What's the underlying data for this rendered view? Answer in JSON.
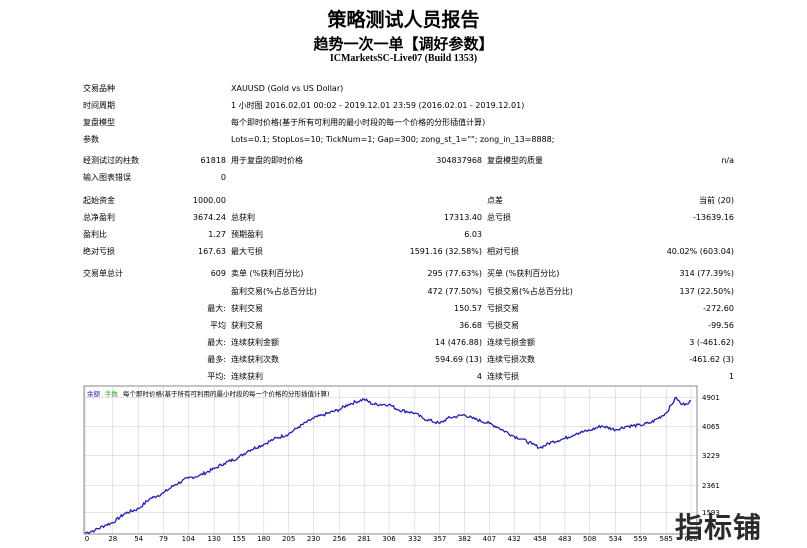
{
  "header": {
    "title": "策略测试人员报告",
    "subtitle": "趋势一次一单【调好参数】",
    "server": "ICMarketsSC-Live07 (Build 1353)"
  },
  "info": {
    "symbol_label": "交易品种",
    "symbol_value": "XAUUSD (Gold vs US Dollar)",
    "period_label": "时间周期",
    "period_value": "1 小时图 2016.02.01 00:02 - 2019.12.01 23:59 (2016.02.01 - 2019.12.01)",
    "model_label": "复盘模型",
    "model_value": "每个即时价格(基于所有可利用的最小时段的每一个价格的分形插值计算)",
    "params_label": "参数",
    "params_value": "Lots=0.1; StopLos=10; TickNum=1; Gap=300; zong_st_1=\"\"; zong_in_13=8888;"
  },
  "bars": {
    "bars_label": "经测试过的柱数",
    "bars_value": "61818",
    "ticks_label": "用于复盘的即时价格",
    "ticks_value": "304837968",
    "quality_label": "复盘模型的质量",
    "quality_value": "n/a",
    "errors_label": "输入图表错误",
    "errors_value": "0"
  },
  "stats": {
    "deposit_label": "起始资金",
    "deposit_value": "1000.00",
    "spread_label": "点差",
    "spread_value": "当前 (20)",
    "net_label": "总净盈利",
    "net_value": "3674.24",
    "gross_profit_label": "总获利",
    "gross_profit_value": "17313.40",
    "gross_loss_label": "总亏损",
    "gross_loss_value": "-13639.16",
    "pf_label": "盈利比",
    "pf_value": "1.27",
    "expected_label": "预期盈利",
    "expected_value": "6.03",
    "abs_dd_label": "绝对亏损",
    "abs_dd_value": "167.63",
    "max_dd_label": "最大亏损",
    "max_dd_value": "1591.16 (32.58%)",
    "rel_dd_label": "相对亏损",
    "rel_dd_value": "40.02% (603.04)"
  },
  "trades": {
    "total_label": "交易单总计",
    "total_value": "609",
    "short_label": "卖单 (%获利百分比)",
    "short_value": "295 (77.63%)",
    "long_label": "买单 (%获利百分比)",
    "long_value": "314 (77.39%)",
    "profit_trades_label": "盈利交易(%占总百分比)",
    "profit_trades_value": "472 (77.50%)",
    "loss_trades_label": "亏损交易(%占总百分比)",
    "loss_trades_value": "137 (22.50%)",
    "largest_prefix": "最大:",
    "largest_profit_label": "获利交易",
    "largest_profit_value": "150.57",
    "largest_loss_label": "亏损交易",
    "largest_loss_value": "-272.60",
    "average_prefix": "平均",
    "average_profit_label": "获利交易",
    "average_profit_value": "36.68",
    "average_loss_label": "亏损交易",
    "average_loss_value": "-99.56",
    "max_prefix": "最大:",
    "max_cons_wins_label": "连续获利金额",
    "max_cons_wins_value": "14 (476.88)",
    "max_cons_losses_label": "连续亏损金额",
    "max_cons_losses_value": "3 (-461.62)",
    "most_prefix": "最多:",
    "most_cons_profit_label": "连续获利次数",
    "most_cons_profit_value": "594.69 (13)",
    "most_cons_loss_label": "连续亏损次数",
    "most_cons_loss_value": "-461.62 (3)",
    "avg_prefix": "平均:",
    "avg_cons_wins_label": "连续获利",
    "avg_cons_wins_value": "4",
    "avg_cons_losses_label": "连续亏损",
    "avg_cons_losses_value": "1"
  },
  "chart_legend": {
    "balance": "余额",
    "lots": "手数",
    "model": "每个即时价格(基于所有可利用的最小时段的每一个价格的分形插值计算)"
  },
  "watermark": "指标铺",
  "colors": {
    "line": "#1f1fbf",
    "legend_balance": "#2020c0",
    "legend_lots": "#30a030",
    "grid": "#c8c8c8"
  },
  "chart_data": {
    "type": "line",
    "title": "",
    "xlabel": "",
    "ylabel": "",
    "xticks": [
      0,
      28,
      54,
      79,
      104,
      130,
      155,
      180,
      205,
      230,
      256,
      281,
      306,
      332,
      357,
      382,
      407,
      432,
      458,
      483,
      508,
      534,
      559,
      585,
      610
    ],
    "yticks": [
      1593,
      2361,
      3229,
      4065,
      4901
    ],
    "ylim": [
      1000,
      5200
    ],
    "xlim": [
      0,
      615
    ],
    "series": [
      {
        "x": [
          0,
          10,
          20,
          28,
          40,
          54,
          65,
          79,
          90,
          104,
          115,
          130,
          140,
          155,
          165,
          180,
          190,
          205,
          215,
          230,
          240,
          256,
          265,
          281,
          290,
          306,
          315,
          332,
          340,
          357,
          365,
          382,
          390,
          407,
          415,
          432,
          440,
          450,
          458,
          470,
          483,
          495,
          508,
          520,
          534,
          545,
          559,
          570,
          585,
          595,
          600,
          605,
          610
        ],
        "y": [
          1000,
          1080,
          1220,
          1300,
          1560,
          1700,
          1980,
          2150,
          2380,
          2580,
          2650,
          2850,
          3000,
          3180,
          3380,
          3550,
          3700,
          3850,
          4050,
          4300,
          4400,
          4550,
          4700,
          4850,
          4700,
          4700,
          4550,
          4450,
          4300,
          4150,
          4300,
          4400,
          4300,
          4150,
          4050,
          3780,
          3700,
          3560,
          3450,
          3620,
          3720,
          3870,
          3950,
          4080,
          3970,
          4070,
          4100,
          4180,
          4450,
          4900,
          4700,
          4720,
          4800
        ]
      }
    ]
  }
}
